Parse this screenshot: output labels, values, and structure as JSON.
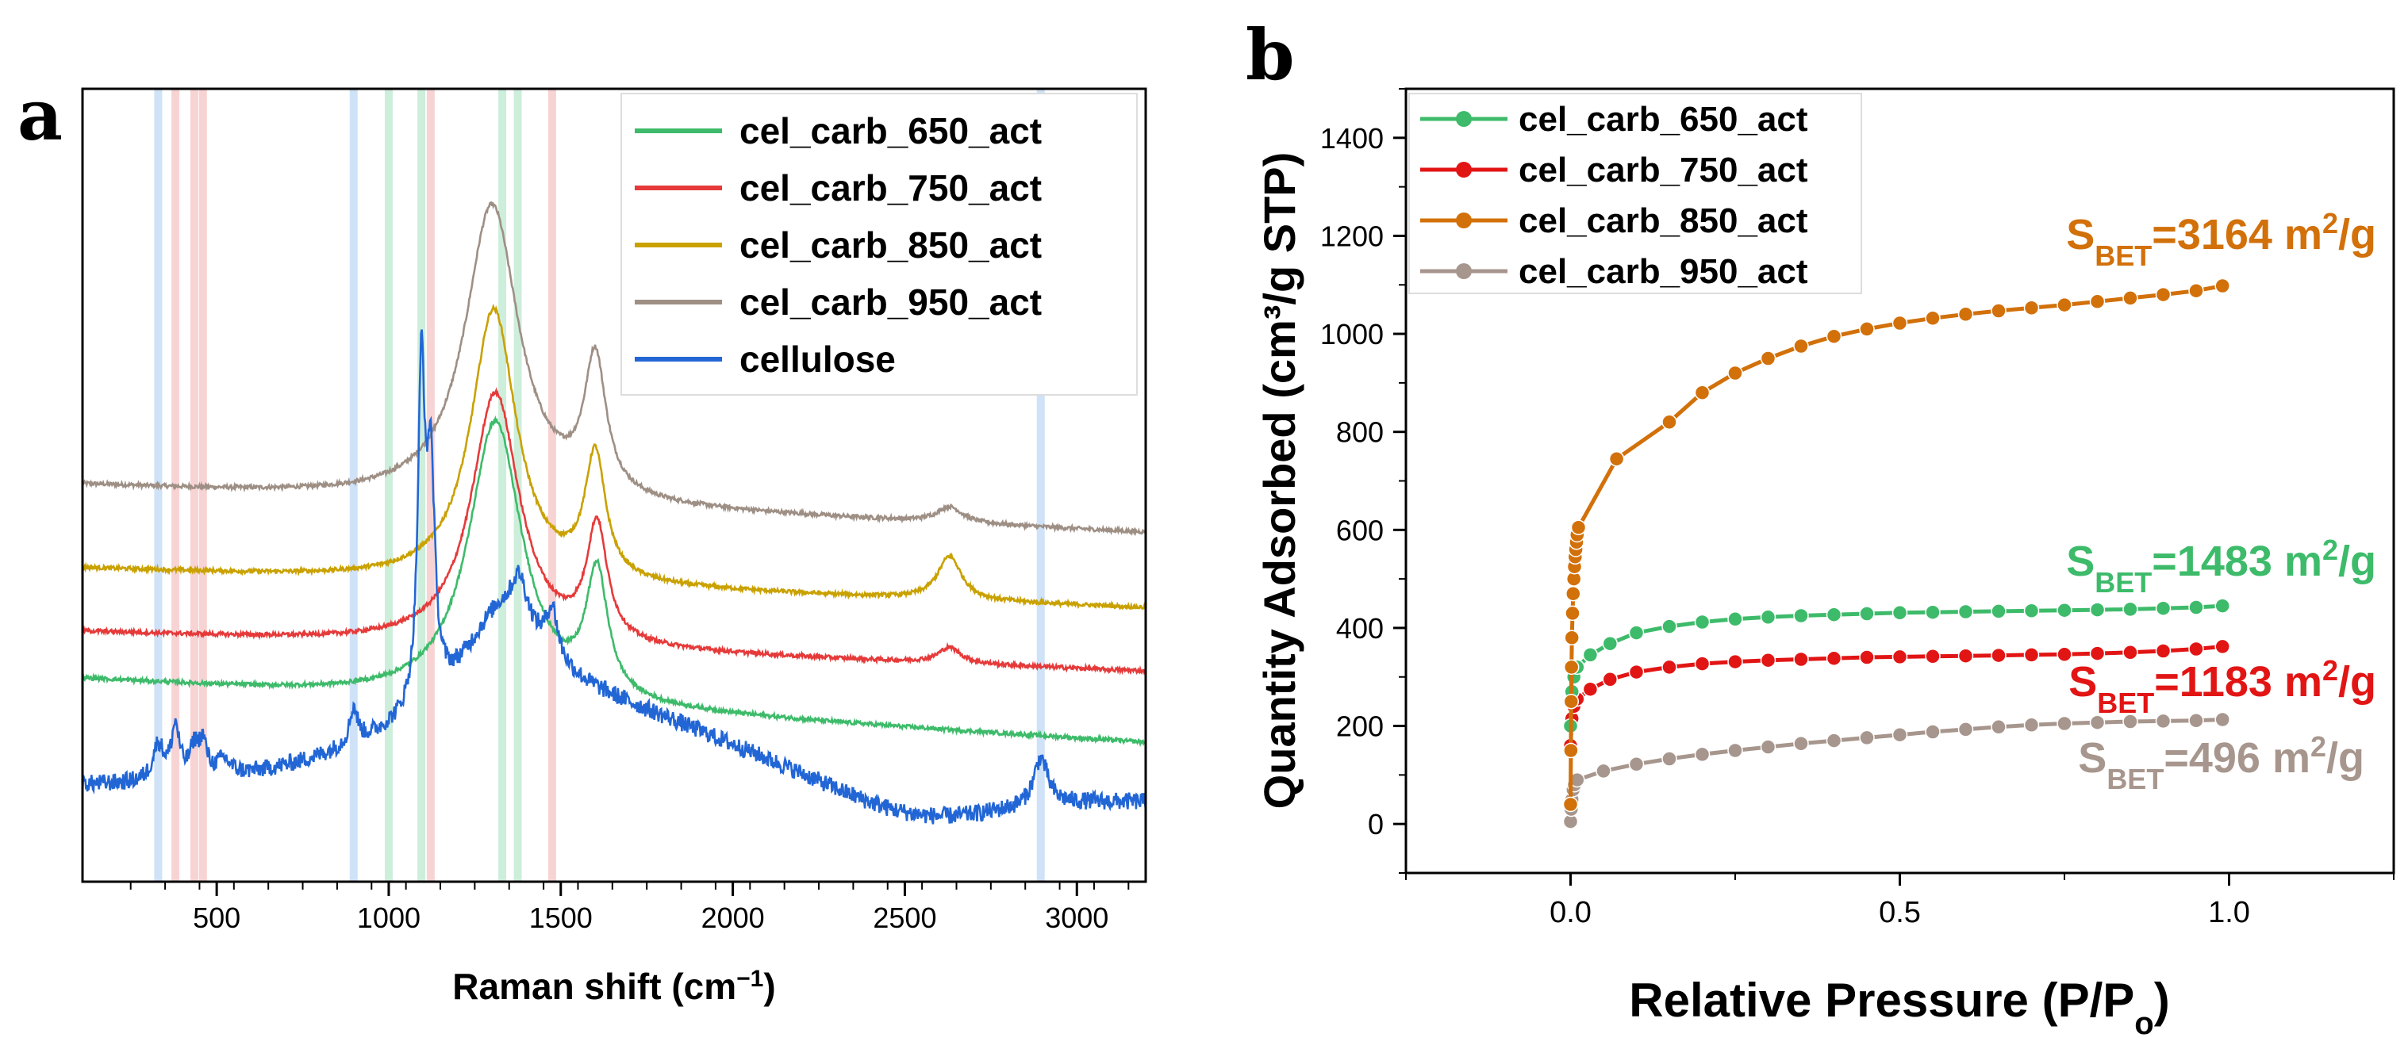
{
  "panels": {
    "a": {
      "label": "a"
    },
    "b": {
      "label": "b"
    }
  },
  "colors": {
    "cel_carb_650_act": "#3dbb6a",
    "cel_carb_750_act": "#e63a3a",
    "cel_carb_850_act": "#c9a100",
    "cel_carb_950_act": "#9e8f85",
    "cellulose": "#2266d6",
    "b_650": "#3dbb6a",
    "b_750": "#e21515",
    "b_850": "#d2700a",
    "b_950": "#a7968d",
    "band_blue": "#cfe2f7",
    "band_red": "#f8d3d3",
    "band_green": "#cdeedb"
  },
  "chart_data": [
    {
      "type": "line",
      "panel": "a",
      "title": "",
      "xlabel": "Raman shift (cm",
      "xlabel_sup": "−1",
      "xlabel_close": ")",
      "ylabel": "",
      "xlim": [
        110,
        3200
      ],
      "ylim": [
        0,
        10
      ],
      "xticks": [
        500,
        1000,
        1500,
        2000,
        2500,
        3000
      ],
      "xtick_labels": [
        "500",
        "1000",
        "1500",
        "2000",
        "2500",
        "3000"
      ],
      "legend": [
        "cel_carb_650_act",
        "cel_carb_750_act",
        "cel_carb_850_act",
        "cel_carb_950_act",
        "cellulose"
      ],
      "legend_position": "top-right",
      "bands": [
        {
          "x": 330,
          "color": "blue"
        },
        {
          "x": 380,
          "color": "red"
        },
        {
          "x": 435,
          "color": "red"
        },
        {
          "x": 460,
          "color": "red"
        },
        {
          "x": 898,
          "color": "blue"
        },
        {
          "x": 1000,
          "color": "green"
        },
        {
          "x": 1095,
          "color": "green"
        },
        {
          "x": 1122,
          "color": "red"
        },
        {
          "x": 1330,
          "color": "green"
        },
        {
          "x": 1375,
          "color": "green"
        },
        {
          "x": 1475,
          "color": "red"
        },
        {
          "x": 2895,
          "color": "blue"
        }
      ],
      "series": [
        {
          "name": "cel_carb_950_act",
          "baseline": 5.0,
          "end": 4.4,
          "peaks": [
            {
              "x": 1300,
              "h": 3.75,
              "w": 95
            },
            {
              "x": 1600,
              "h": 1.7,
              "w": 38
            },
            {
              "x": 2630,
              "h": 0.2,
              "w": 45
            }
          ]
        },
        {
          "name": "cel_carb_850_act",
          "baseline": 3.95,
          "end": 3.45,
          "peaks": [
            {
              "x": 1305,
              "h": 3.45,
              "w": 80
            },
            {
              "x": 1600,
              "h": 1.55,
              "w": 36
            },
            {
              "x": 2630,
              "h": 0.55,
              "w": 42
            }
          ]
        },
        {
          "name": "cel_carb_750_act",
          "baseline": 3.15,
          "end": 2.65,
          "peaks": [
            {
              "x": 1310,
              "h": 3.2,
              "w": 85
            },
            {
              "x": 1605,
              "h": 1.45,
              "w": 36
            },
            {
              "x": 2630,
              "h": 0.2,
              "w": 40
            }
          ]
        },
        {
          "name": "cel_carb_650_act",
          "baseline": 2.55,
          "end": 1.75,
          "peaks": [
            {
              "x": 1310,
              "h": 3.55,
              "w": 95
            },
            {
              "x": 1605,
              "h": 1.55,
              "w": 38
            }
          ]
        },
        {
          "name": "cellulose",
          "baseline": 1.2,
          "end": 1.0,
          "peaks": [
            {
              "x": 380,
              "h": 0.65,
              "w": 14
            },
            {
              "x": 330,
              "h": 0.45,
              "w": 20
            },
            {
              "x": 435,
              "h": 0.35,
              "w": 16
            },
            {
              "x": 460,
              "h": 0.4,
              "w": 14
            },
            {
              "x": 520,
              "h": 0.2,
              "w": 25
            },
            {
              "x": 898,
              "h": 0.45,
              "w": 14
            },
            {
              "x": 1095,
              "h": 4.1,
              "w": 12
            },
            {
              "x": 1122,
              "h": 2.8,
              "w": 14
            },
            {
              "x": 1335,
              "h": 1.3,
              "w": 140
            },
            {
              "x": 1380,
              "h": 0.5,
              "w": 25
            },
            {
              "x": 1475,
              "h": 0.6,
              "w": 20
            },
            {
              "x": 2895,
              "h": 0.6,
              "w": 25
            }
          ]
        }
      ]
    },
    {
      "type": "line",
      "panel": "b",
      "title": "",
      "xlabel": "Relative Pressure (P/P",
      "xlabel_sub": "o",
      "xlabel_close": ")",
      "ylabel": "Quantity Adsorbed (cm³/g STP)",
      "xlim": [
        -0.25,
        1.25
      ],
      "ylim": [
        -100,
        1500
      ],
      "xticks": [
        0.0,
        0.5,
        1.0
      ],
      "xtick_labels": [
        "0.0",
        "0.5",
        "1.0"
      ],
      "yticks": [
        0,
        200,
        400,
        600,
        800,
        1000,
        1200,
        1400
      ],
      "ytick_labels": [
        "0",
        "200",
        "400",
        "600",
        "800",
        "1000",
        "1200",
        "1400"
      ],
      "legend": [
        "cel_carb_650_act",
        "cel_carb_750_act",
        "cel_carb_850_act",
        "cel_carb_950_act"
      ],
      "legend_position": "top-left",
      "series": [
        {
          "name": "cel_carb_650_act",
          "points": [
            [
              0.0,
              200
            ],
            [
              0.002,
              270
            ],
            [
              0.005,
              300
            ],
            [
              0.01,
              320
            ],
            [
              0.03,
              345
            ],
            [
              0.06,
              368
            ],
            [
              0.1,
              390
            ],
            [
              0.15,
              403
            ],
            [
              0.2,
              412
            ],
            [
              0.25,
              418
            ],
            [
              0.3,
              422
            ],
            [
              0.35,
              425
            ],
            [
              0.4,
              427
            ],
            [
              0.45,
              429
            ],
            [
              0.5,
              431
            ],
            [
              0.55,
              432
            ],
            [
              0.6,
              433
            ],
            [
              0.65,
              434
            ],
            [
              0.7,
              435
            ],
            [
              0.75,
              436
            ],
            [
              0.8,
              437
            ],
            [
              0.85,
              438
            ],
            [
              0.9,
              440
            ],
            [
              0.95,
              442
            ],
            [
              0.99,
              445
            ]
          ]
        },
        {
          "name": "cel_carb_750_act",
          "points": [
            [
              0.0,
              160
            ],
            [
              0.002,
              215
            ],
            [
              0.005,
              240
            ],
            [
              0.01,
              255
            ],
            [
              0.03,
              275
            ],
            [
              0.06,
              295
            ],
            [
              0.1,
              310
            ],
            [
              0.15,
              320
            ],
            [
              0.2,
              327
            ],
            [
              0.25,
              331
            ],
            [
              0.3,
              334
            ],
            [
              0.35,
              336
            ],
            [
              0.4,
              338
            ],
            [
              0.45,
              340
            ],
            [
              0.5,
              341
            ],
            [
              0.55,
              342
            ],
            [
              0.6,
              343
            ],
            [
              0.65,
              344
            ],
            [
              0.7,
              345
            ],
            [
              0.75,
              346
            ],
            [
              0.8,
              348
            ],
            [
              0.85,
              350
            ],
            [
              0.9,
              353
            ],
            [
              0.95,
              357
            ],
            [
              0.99,
              362
            ]
          ]
        },
        {
          "name": "cel_carb_850_act",
          "points": [
            [
              0.0,
              40
            ],
            [
              0.0005,
              150
            ],
            [
              0.001,
              250
            ],
            [
              0.0015,
              320
            ],
            [
              0.002,
              380
            ],
            [
              0.003,
              430
            ],
            [
              0.004,
              470
            ],
            [
              0.005,
              500
            ],
            [
              0.006,
              525
            ],
            [
              0.007,
              545
            ],
            [
              0.008,
              560
            ],
            [
              0.009,
              575
            ],
            [
              0.01,
              590
            ],
            [
              0.012,
              605
            ],
            [
              0.07,
              745
            ],
            [
              0.15,
              820
            ],
            [
              0.2,
              880
            ],
            [
              0.25,
              920
            ],
            [
              0.3,
              950
            ],
            [
              0.35,
              975
            ],
            [
              0.4,
              995
            ],
            [
              0.45,
              1010
            ],
            [
              0.5,
              1022
            ],
            [
              0.55,
              1032
            ],
            [
              0.6,
              1040
            ],
            [
              0.65,
              1047
            ],
            [
              0.7,
              1053
            ],
            [
              0.75,
              1059
            ],
            [
              0.8,
              1066
            ],
            [
              0.85,
              1073
            ],
            [
              0.9,
              1080
            ],
            [
              0.95,
              1088
            ],
            [
              0.99,
              1098
            ]
          ]
        },
        {
          "name": "cel_carb_950_act",
          "points": [
            [
              0.0,
              5
            ],
            [
              0.001,
              30
            ],
            [
              0.002,
              50
            ],
            [
              0.004,
              70
            ],
            [
              0.006,
              80
            ],
            [
              0.01,
              90
            ],
            [
              0.05,
              108
            ],
            [
              0.1,
              122
            ],
            [
              0.15,
              133
            ],
            [
              0.2,
              142
            ],
            [
              0.25,
              150
            ],
            [
              0.3,
              157
            ],
            [
              0.35,
              164
            ],
            [
              0.4,
              170
            ],
            [
              0.45,
              176
            ],
            [
              0.5,
              182
            ],
            [
              0.55,
              188
            ],
            [
              0.6,
              193
            ],
            [
              0.65,
              198
            ],
            [
              0.7,
              202
            ],
            [
              0.75,
              205
            ],
            [
              0.8,
              207
            ],
            [
              0.85,
              209
            ],
            [
              0.9,
              210
            ],
            [
              0.95,
              211
            ],
            [
              0.99,
              213
            ]
          ]
        }
      ],
      "annotations": [
        {
          "series": "cel_carb_850_act",
          "prefix": "S",
          "sub": "BET",
          "text": "=3164 m",
          "sup": "2",
          "suffix": "/g"
        },
        {
          "series": "cel_carb_650_act",
          "prefix": "S",
          "sub": "BET",
          "text": "=1483 m",
          "sup": "2",
          "suffix": "/g"
        },
        {
          "series": "cel_carb_750_act",
          "prefix": "S",
          "sub": "BET",
          "text": "=1183 m",
          "sup": "2",
          "suffix": "/g"
        },
        {
          "series": "cel_carb_950_act",
          "prefix": "S",
          "sub": "BET",
          "text": "=496 m",
          "sup": "2",
          "suffix": "/g"
        }
      ]
    }
  ]
}
